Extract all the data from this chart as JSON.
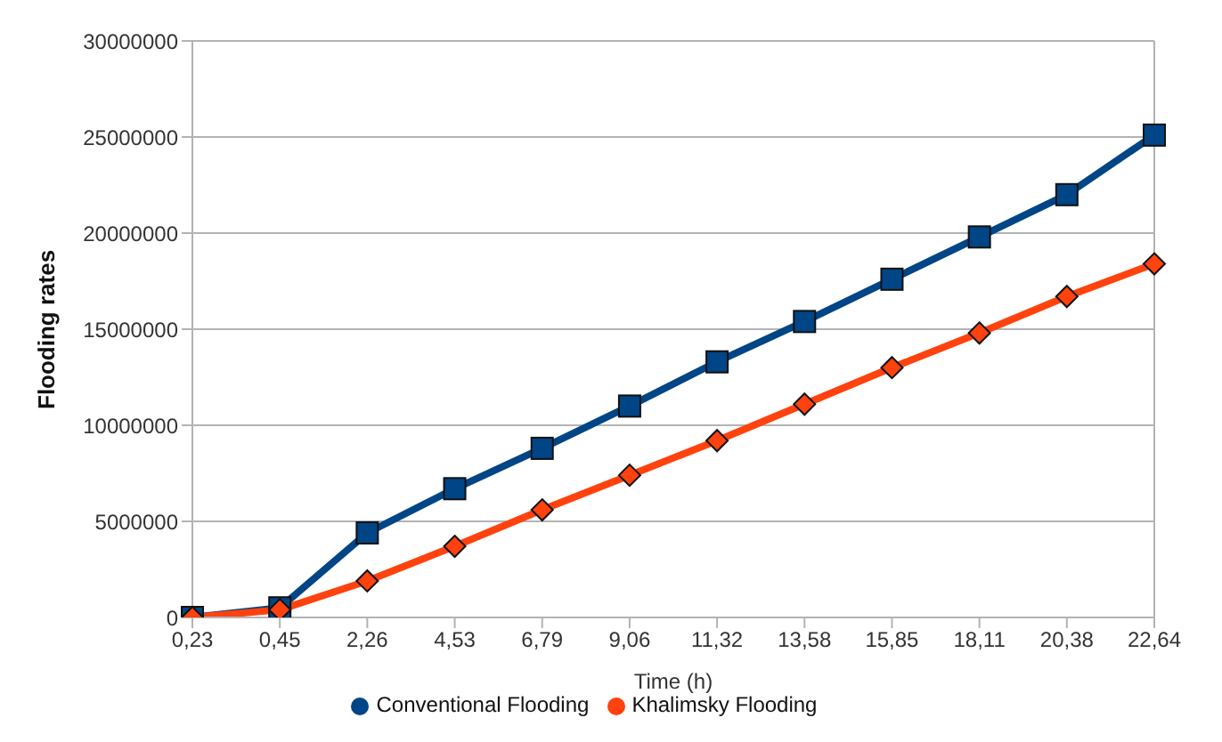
{
  "chart_data": {
    "type": "line",
    "xlabel": "Time (h)",
    "ylabel": "Flooding rates",
    "categories": [
      "0,23",
      "0,45",
      "2,26",
      "4,53",
      "6,79",
      "9,06",
      "11,32",
      "13,58",
      "15,85",
      "18,11",
      "20,38",
      "22,64"
    ],
    "series": [
      {
        "name": "Conventional Flooding",
        "color": "#004586",
        "marker": "square",
        "values": [
          0,
          500000,
          4400000,
          6700000,
          8800000,
          11000000,
          13300000,
          15400000,
          17600000,
          19800000,
          22000000,
          25100000
        ]
      },
      {
        "name": "Khalimsky Flooding",
        "color": "#ff420e",
        "marker": "diamond",
        "values": [
          0,
          400000,
          1900000,
          3700000,
          5600000,
          7400000,
          9200000,
          11100000,
          13000000,
          14800000,
          16700000,
          18400000
        ]
      }
    ],
    "ylim": [
      0,
      30000000
    ],
    "yticks": [
      0,
      5000000,
      10000000,
      15000000,
      20000000,
      25000000,
      30000000
    ],
    "grid": "y",
    "legend": "bottom"
  }
}
